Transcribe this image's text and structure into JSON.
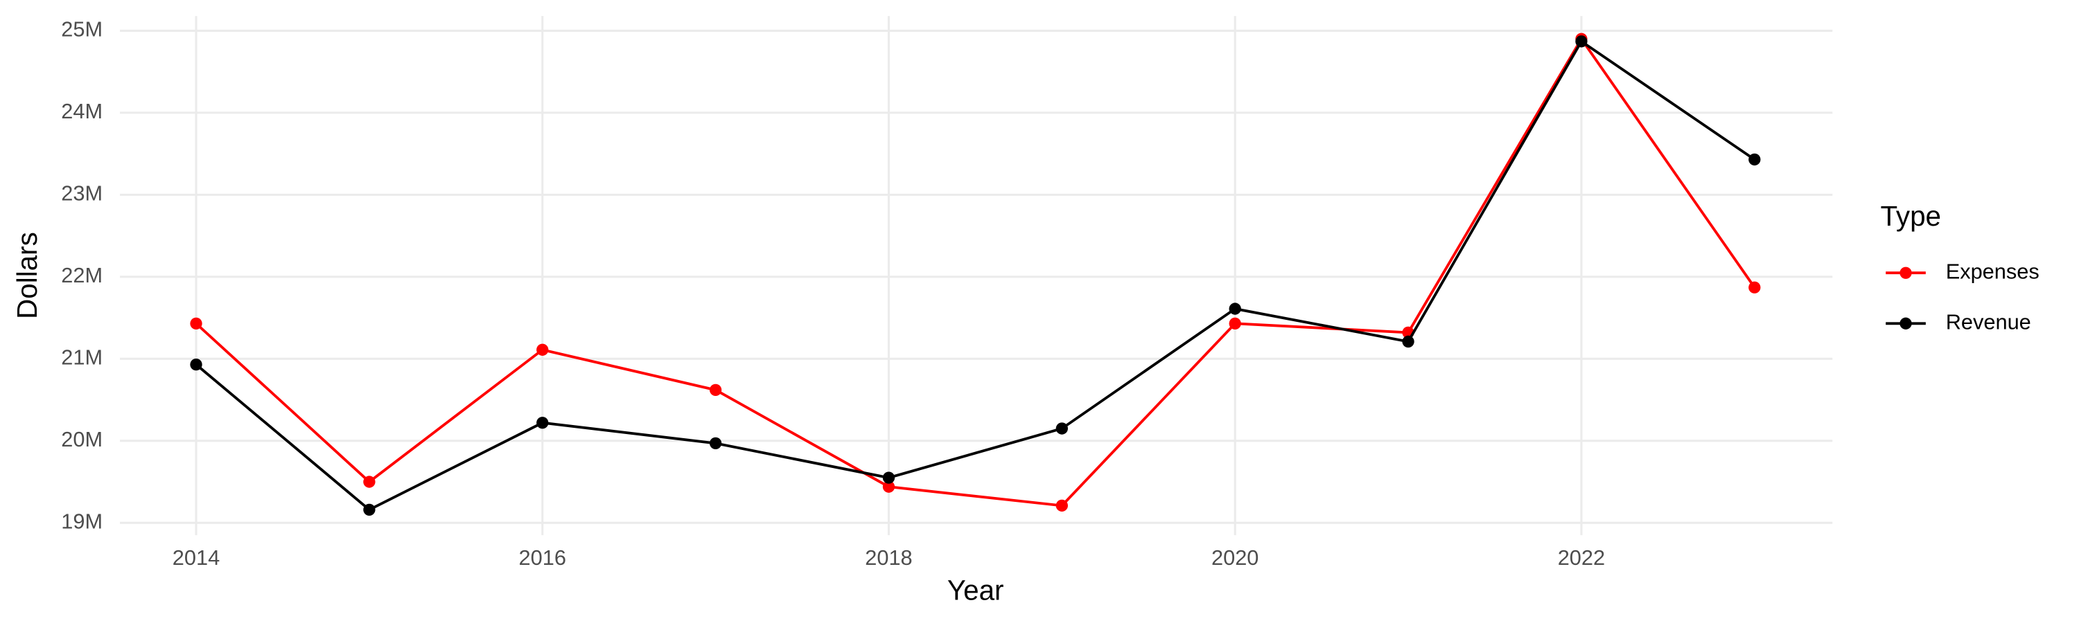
{
  "chart_data": {
    "type": "line",
    "x_label": "Year",
    "y_label": "Dollars",
    "legend_title": "Type",
    "x": [
      2014,
      2015,
      2016,
      2017,
      2018,
      2019,
      2020,
      2021,
      2022,
      2023
    ],
    "series": [
      {
        "name": "Expenses",
        "color": "#ff0000",
        "values": [
          21430000,
          19500000,
          21110000,
          20620000,
          19440000,
          19210000,
          21430000,
          21320000,
          24900000,
          21870000
        ]
      },
      {
        "name": "Revenue",
        "color": "#000000",
        "values": [
          20930000,
          19160000,
          20220000,
          19970000,
          19550000,
          20150000,
          21610000,
          21210000,
          24870000,
          23430000
        ]
      }
    ],
    "xlim": [
      2013.56,
      2023.45
    ],
    "xticks": [
      2014,
      2016,
      2018,
      2020,
      2022
    ],
    "ylim": [
      18850000,
      25180000
    ],
    "yticks": [
      {
        "value": 19000000,
        "label": "19M"
      },
      {
        "value": 20000000,
        "label": "20M"
      },
      {
        "value": 21000000,
        "label": "21M"
      },
      {
        "value": 22000000,
        "label": "22M"
      },
      {
        "value": 23000000,
        "label": "23M"
      },
      {
        "value": 24000000,
        "label": "24M"
      },
      {
        "value": 25000000,
        "label": "25M"
      }
    ],
    "grid": true,
    "legend_position": "right"
  }
}
